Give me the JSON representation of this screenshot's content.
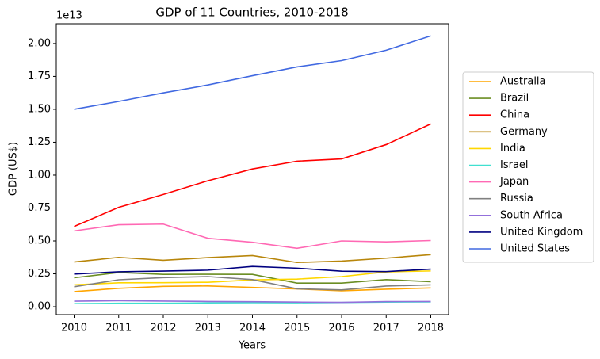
{
  "chart_data": {
    "type": "line",
    "title": "GDP of 11 Countries, 2010-2018",
    "x_label": "Years",
    "y_label": "GDP (US$)",
    "y_offset_label": "1e13",
    "x": [
      2010,
      2011,
      2012,
      2013,
      2014,
      2015,
      2016,
      2017,
      2018
    ],
    "xlim": [
      2009.6,
      2018.4
    ],
    "xticks": [
      2010,
      2011,
      2012,
      2013,
      2014,
      2015,
      2016,
      2017,
      2018
    ],
    "ylim": [
      -0.06,
      2.15
    ],
    "yticks": [
      {
        "value": 0,
        "label": "0.00"
      },
      0.25,
      {
        "value": 0.5,
        "label": "0.50"
      },
      0.75,
      {
        "value": 1,
        "label": "1.00"
      },
      1.25,
      {
        "value": 1.5,
        "label": "1.50"
      },
      1.75,
      {
        "value": 2,
        "label": "2.00"
      }
    ],
    "grid": false,
    "legend": "outside right",
    "series": [
      {
        "name": "Australia",
        "color": "#ffa500",
        "values": [
          0.115,
          0.14,
          0.155,
          0.158,
          0.147,
          0.135,
          0.121,
          0.133,
          0.143
        ]
      },
      {
        "name": "Brazil",
        "color": "#6b8e23",
        "values": [
          0.22,
          0.26,
          0.246,
          0.247,
          0.246,
          0.18,
          0.18,
          0.206,
          0.19
        ]
      },
      {
        "name": "China",
        "color": "#ff0000",
        "values": [
          0.61,
          0.755,
          0.853,
          0.957,
          1.047,
          1.106,
          1.123,
          1.232,
          1.389
        ]
      },
      {
        "name": "Germany",
        "color": "#b8860b",
        "values": [
          0.34,
          0.375,
          0.353,
          0.373,
          0.389,
          0.336,
          0.347,
          0.369,
          0.396
        ]
      },
      {
        "name": "India",
        "color": "#ffd700",
        "values": [
          0.166,
          0.182,
          0.183,
          0.186,
          0.204,
          0.21,
          0.229,
          0.265,
          0.272
        ]
      },
      {
        "name": "Israel",
        "color": "#40e0d0",
        "values": [
          0.023,
          0.026,
          0.026,
          0.029,
          0.031,
          0.03,
          0.032,
          0.035,
          0.037
        ]
      },
      {
        "name": "Japan",
        "color": "#ff69b4",
        "values": [
          0.576,
          0.623,
          0.628,
          0.52,
          0.49,
          0.444,
          0.5,
          0.493,
          0.503
        ]
      },
      {
        "name": "Russia",
        "color": "#808080",
        "values": [
          0.152,
          0.205,
          0.221,
          0.229,
          0.206,
          0.136,
          0.128,
          0.157,
          0.166
        ]
      },
      {
        "name": "South Africa",
        "color": "#9370db",
        "values": [
          0.042,
          0.046,
          0.043,
          0.04,
          0.038,
          0.035,
          0.033,
          0.039,
          0.04
        ]
      },
      {
        "name": "United Kingdom",
        "color": "#000080",
        "values": [
          0.248,
          0.266,
          0.271,
          0.278,
          0.306,
          0.293,
          0.27,
          0.267,
          0.286
        ]
      },
      {
        "name": "United States",
        "color": "#4169e1",
        "values": [
          1.5,
          1.56,
          1.625,
          1.685,
          1.755,
          1.822,
          1.87,
          1.949,
          2.058
        ]
      }
    ]
  }
}
